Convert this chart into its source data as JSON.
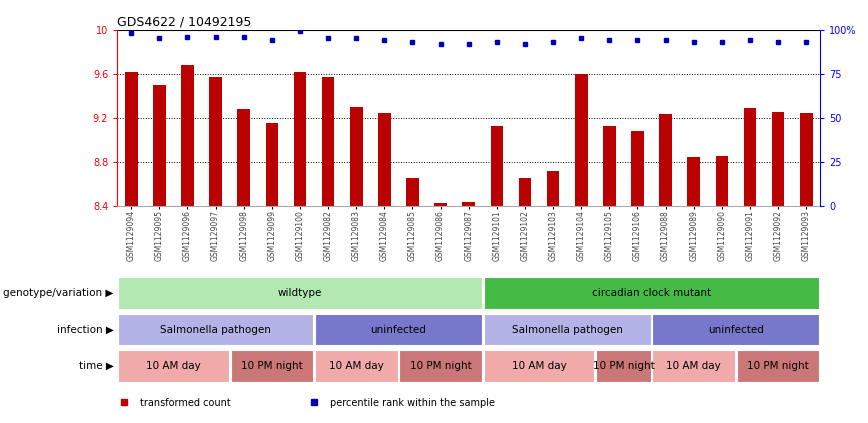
{
  "title": "GDS4622 / 10492195",
  "samples": [
    "GSM1129094",
    "GSM1129095",
    "GSM1129096",
    "GSM1129097",
    "GSM1129098",
    "GSM1129099",
    "GSM1129100",
    "GSM1129082",
    "GSM1129083",
    "GSM1129084",
    "GSM1129085",
    "GSM1129086",
    "GSM1129087",
    "GSM1129101",
    "GSM1129102",
    "GSM1129103",
    "GSM1129104",
    "GSM1129105",
    "GSM1129106",
    "GSM1129088",
    "GSM1129089",
    "GSM1129090",
    "GSM1129091",
    "GSM1129092",
    "GSM1129093"
  ],
  "bar_values": [
    9.62,
    9.5,
    9.68,
    9.57,
    9.28,
    9.15,
    9.62,
    9.57,
    9.3,
    9.24,
    8.65,
    8.43,
    8.44,
    9.13,
    8.65,
    8.72,
    9.6,
    9.13,
    9.08,
    9.23,
    8.84,
    8.85,
    9.29,
    9.25,
    9.24
  ],
  "percentile_values": [
    98,
    95,
    96,
    96,
    96,
    94,
    99,
    95,
    95,
    94,
    93,
    92,
    92,
    93,
    92,
    93,
    95,
    94,
    94,
    94,
    93,
    93,
    94,
    93,
    93
  ],
  "y_min": 8.4,
  "y_max": 10.0,
  "y_ticks": [
    8.4,
    8.8,
    9.2,
    9.6,
    10.0
  ],
  "y_tick_labels": [
    "8.4",
    "8.8",
    "9.2",
    "9.6",
    "10"
  ],
  "right_y_ticks": [
    0,
    25,
    50,
    75,
    100
  ],
  "right_y_tick_labels": [
    "0",
    "25",
    "50",
    "75",
    "100%"
  ],
  "bar_color": "#bb0000",
  "dot_color": "#0000bb",
  "genotype_row": {
    "label": "genotype/variation",
    "entries": [
      {
        "text": "wildtype",
        "start": 0,
        "end": 13,
        "color": "#b3e8b3"
      },
      {
        "text": "circadian clock mutant",
        "start": 13,
        "end": 25,
        "color": "#44bb44"
      }
    ]
  },
  "infection_row": {
    "label": "infection",
    "entries": [
      {
        "text": "Salmonella pathogen",
        "start": 0,
        "end": 7,
        "color": "#b3b3e8"
      },
      {
        "text": "uninfected",
        "start": 7,
        "end": 13,
        "color": "#7777cc"
      },
      {
        "text": "Salmonella pathogen",
        "start": 13,
        "end": 19,
        "color": "#b3b3e8"
      },
      {
        "text": "uninfected",
        "start": 19,
        "end": 25,
        "color": "#7777cc"
      }
    ]
  },
  "time_row": {
    "label": "time",
    "entries": [
      {
        "text": "10 AM day",
        "start": 0,
        "end": 4,
        "color": "#f0aaaa"
      },
      {
        "text": "10 PM night",
        "start": 4,
        "end": 7,
        "color": "#cc7777"
      },
      {
        "text": "10 AM day",
        "start": 7,
        "end": 10,
        "color": "#f0aaaa"
      },
      {
        "text": "10 PM night",
        "start": 10,
        "end": 13,
        "color": "#cc7777"
      },
      {
        "text": "10 AM day",
        "start": 13,
        "end": 17,
        "color": "#f0aaaa"
      },
      {
        "text": "10 PM night",
        "start": 17,
        "end": 19,
        "color": "#cc7777"
      },
      {
        "text": "10 AM day",
        "start": 19,
        "end": 22,
        "color": "#f0aaaa"
      },
      {
        "text": "10 PM night",
        "start": 22,
        "end": 25,
        "color": "#cc7777"
      }
    ]
  },
  "legend_items": [
    {
      "label": "transformed count",
      "color": "#bb0000"
    },
    {
      "label": "percentile rank within the sample",
      "color": "#0000bb"
    }
  ],
  "bg_color": "#ffffff",
  "grid_color": "#000000",
  "title_fontsize": 9,
  "annot_fontsize": 7.5,
  "label_fontsize": 7.5
}
